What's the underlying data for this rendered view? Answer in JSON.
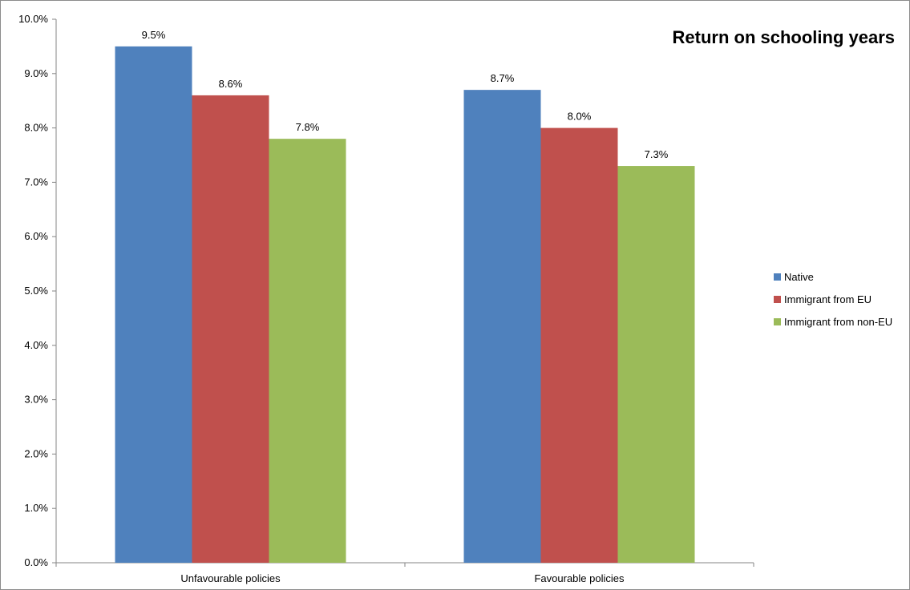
{
  "chart_data": {
    "type": "bar",
    "title": "Return on schooling years",
    "xlabel": "",
    "ylabel": "",
    "categories": [
      "Unfavourable policies",
      "Favourable policies"
    ],
    "series": [
      {
        "name": "Native",
        "values": [
          9.5,
          8.7
        ],
        "labels": [
          "9.5%",
          "8.7%"
        ],
        "color": "#4f81bd"
      },
      {
        "name": "Immigrant from EU",
        "values": [
          8.6,
          8.0
        ],
        "labels": [
          "8.6%",
          "8.0%"
        ],
        "color": "#c0504d"
      },
      {
        "name": "Immigrant from non-EU",
        "values": [
          7.8,
          7.3
        ],
        "labels": [
          "7.8%",
          "7.3%"
        ],
        "color": "#9bbb59"
      }
    ],
    "ylim": [
      0,
      10
    ],
    "yticks": [
      0,
      1,
      2,
      3,
      4,
      5,
      6,
      7,
      8,
      9,
      10
    ],
    "ytick_labels": [
      "0.0%",
      "1.0%",
      "2.0%",
      "3.0%",
      "4.0%",
      "5.0%",
      "6.0%",
      "7.0%",
      "8.0%",
      "9.0%",
      "10.0%"
    ],
    "grid": false,
    "legend_position": "right"
  }
}
